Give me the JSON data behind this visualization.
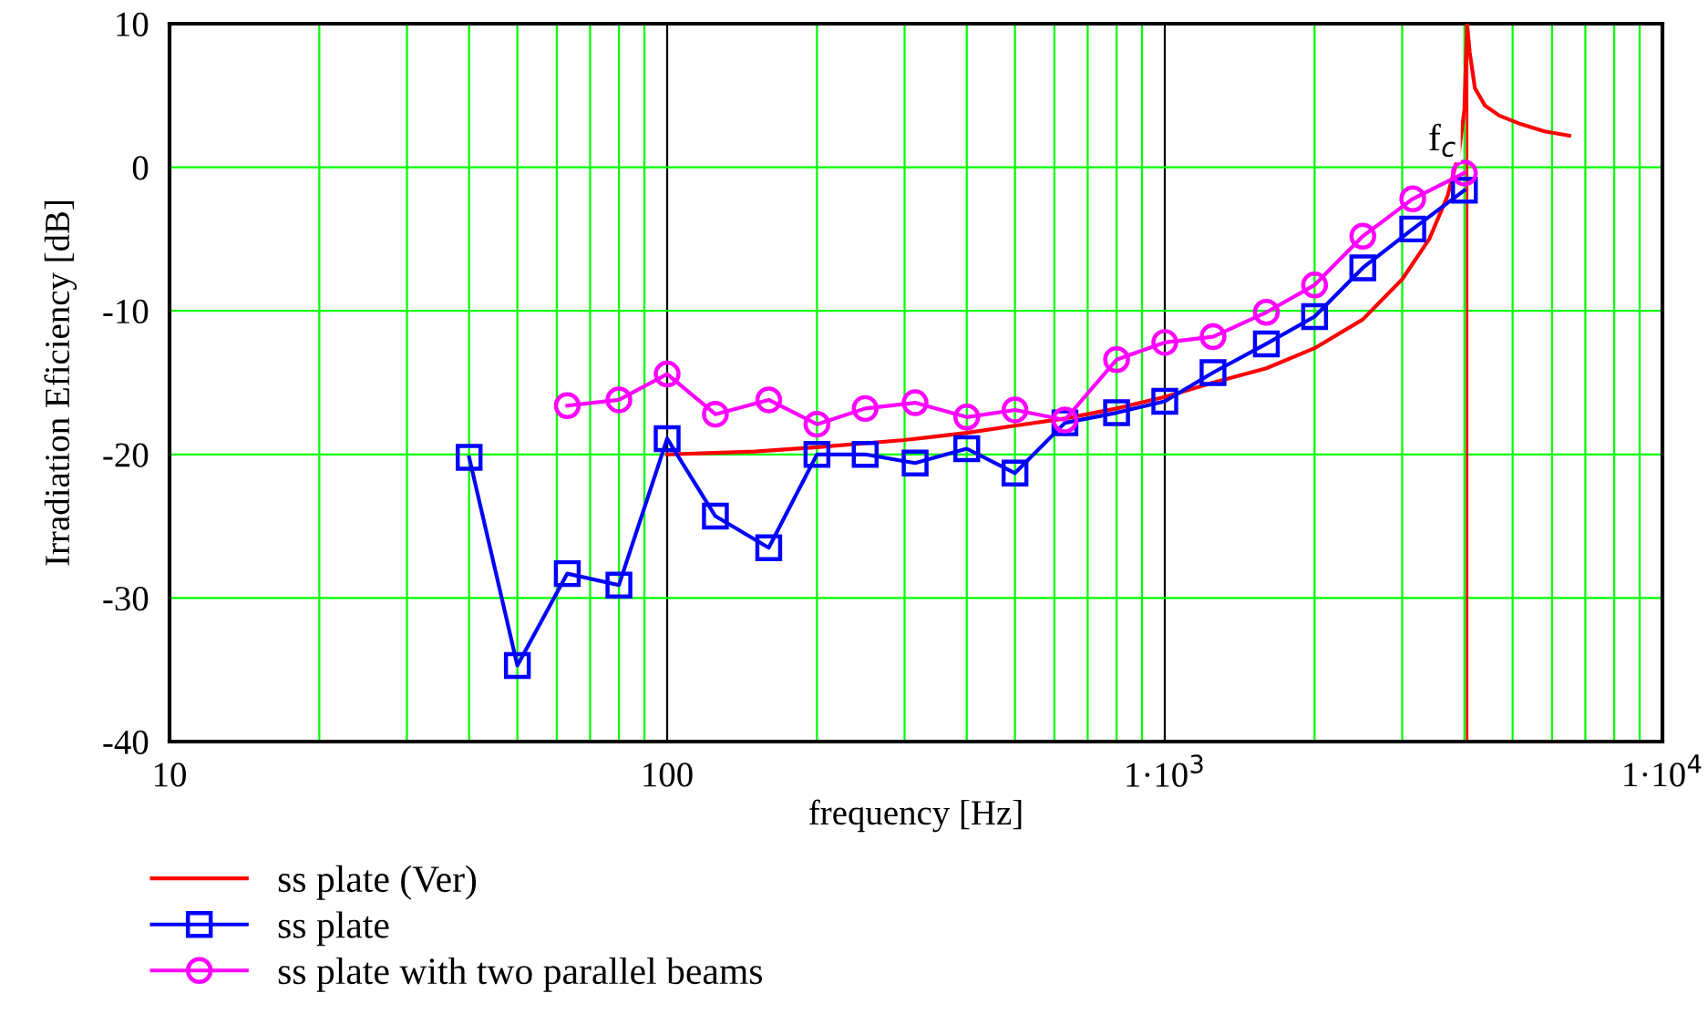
{
  "chart_data": {
    "type": "line",
    "xlabel": "frequency [Hz]",
    "ylabel": "Irradiation Eficiency [dB]",
    "log": "x",
    "xlim": [
      10,
      10000
    ],
    "xticks": [
      10,
      100,
      {
        "value": 1000,
        "label": "1·10$^{3}$"
      },
      {
        "value": 10000,
        "label": "1·10$^{4}$"
      }
    ],
    "ylim": [
      -40,
      10
    ],
    "yticks": [
      -40,
      -30,
      -20,
      -10,
      0,
      10
    ],
    "grid": true,
    "legend": "bottom",
    "ref_lines": [
      {
        "axis": "x",
        "value": 4050,
        "label": "f$_{c}$",
        "color": "#ff0000",
        "line_style": "solid"
      }
    ],
    "series": [
      {
        "name": "ss plate (Ver)",
        "color": "#ff0000",
        "marker": "none",
        "x": [
          100,
          150,
          200,
          300,
          400,
          500,
          630,
          800,
          1000,
          1250,
          1600,
          2000,
          2500,
          3000,
          3400,
          3700,
          3900,
          4000,
          4050,
          4100,
          4200,
          4400,
          4700,
          5200,
          5800,
          6500
        ],
        "values": [
          -20,
          -19.8,
          -19.5,
          -19,
          -18.5,
          -18,
          -17.5,
          -16.8,
          -16,
          -15,
          -14,
          -12.6,
          -10.6,
          -7.8,
          -5,
          -2,
          1,
          4,
          10,
          8,
          5.5,
          4.3,
          3.6,
          3,
          2.5,
          2.2
        ]
      },
      {
        "name": "ss plate",
        "color": "#0000ff",
        "marker": "square",
        "x": [
          40,
          50,
          63,
          80,
          100,
          125,
          160,
          200,
          250,
          315,
          400,
          500,
          630,
          800,
          1000,
          1250,
          1600,
          2000,
          2500,
          3150,
          4000
        ],
        "values": [
          -20.2,
          -34.7,
          -28.3,
          -29.1,
          -18.9,
          -24.3,
          -26.5,
          -20.0,
          -20.0,
          -20.6,
          -19.6,
          -21.3,
          -17.8,
          -17.1,
          -16.3,
          -14.3,
          -12.3,
          -10.4,
          -7.0,
          -4.3,
          -1.6
        ]
      },
      {
        "name": "ss plate with two parallel beams",
        "color": "#ff00ff",
        "marker": "circle",
        "x": [
          63,
          80,
          100,
          125,
          160,
          200,
          250,
          315,
          400,
          500,
          630,
          800,
          1000,
          1250,
          1600,
          2000,
          2500,
          3150,
          4000
        ],
        "values": [
          -16.6,
          -16.2,
          -14.4,
          -17.2,
          -16.2,
          -17.9,
          -16.8,
          -16.4,
          -17.4,
          -16.9,
          -17.6,
          -13.4,
          -12.2,
          -11.8,
          -10.1,
          -8.2,
          -4.8,
          -2.2,
          -0.4
        ]
      }
    ]
  }
}
